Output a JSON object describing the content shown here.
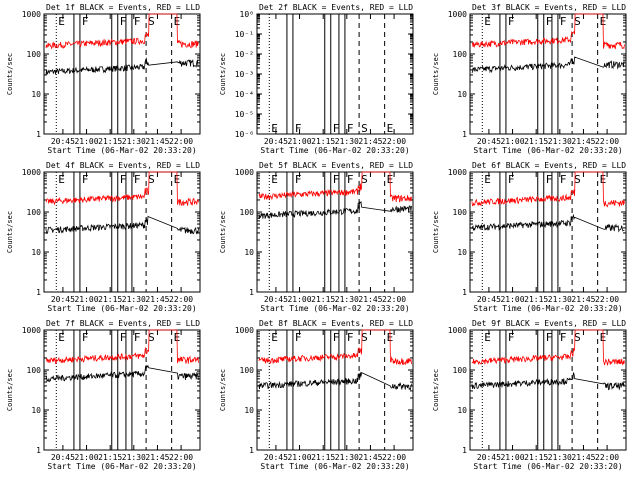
{
  "colors": {
    "events": "#000000",
    "lld": "#ff0000",
    "background": "#ffffff"
  },
  "shared": {
    "xlabel": "Start Time (06-Mar-02 20:33:20)",
    "ylabel": "Counts/sec",
    "xticks": [
      "20:45",
      "21:00",
      "21:15",
      "21:30",
      "21:45",
      "22:00"
    ]
  },
  "chart_data": [
    {
      "type": "line",
      "title": "Det 1f BLACK = Events, RED = LLD",
      "yscale": "log",
      "ylim": [
        1,
        1000
      ],
      "yticks": [
        "1",
        "10",
        "100",
        "1000"
      ],
      "series": [
        {
          "name": "Events",
          "color": "#000000",
          "level": 35,
          "end": 60
        },
        {
          "name": "LLD",
          "color": "#ff0000",
          "level": 160,
          "end": 180
        }
      ],
      "markers": [
        {
          "label": "E",
          "x": 20.68
        },
        {
          "label": "F",
          "x": 20.93
        },
        {
          "label": "F",
          "x": 21.33
        },
        {
          "label": "F",
          "x": 21.48
        },
        {
          "label": "S",
          "x": 21.63
        },
        {
          "label": "E",
          "x": 21.9
        }
      ]
    },
    {
      "type": "line",
      "title": "Det 2f BLACK = Events, RED = LLD",
      "yscale": "log",
      "ylim": [
        1e-06,
        1
      ],
      "yticks": [
        "10⁻⁶",
        "10⁻⁵",
        "10⁻⁴",
        "10⁻³",
        "10⁻²",
        "10⁻¹",
        "10⁰"
      ],
      "series": [],
      "markers": [
        {
          "label": "E",
          "x": 20.68
        },
        {
          "label": "F",
          "x": 20.93
        },
        {
          "label": "F",
          "x": 21.33
        },
        {
          "label": "F",
          "x": 21.48
        },
        {
          "label": "S",
          "x": 21.63
        },
        {
          "label": "E",
          "x": 21.9
        }
      ]
    },
    {
      "type": "line",
      "title": "Det 3f BLACK = Events, RED = LLD",
      "yscale": "log",
      "ylim": [
        1,
        1000
      ],
      "yticks": [
        "1",
        "10",
        "100",
        "1000"
      ],
      "series": [
        {
          "name": "Events",
          "color": "#000000",
          "level": 40,
          "end": 55
        },
        {
          "name": "LLD",
          "color": "#ff0000",
          "level": 170,
          "end": 170
        }
      ],
      "markers": [
        {
          "label": "E",
          "x": 20.68
        },
        {
          "label": "F",
          "x": 20.93
        },
        {
          "label": "F",
          "x": 21.33
        },
        {
          "label": "F",
          "x": 21.48
        },
        {
          "label": "S",
          "x": 21.63
        },
        {
          "label": "E",
          "x": 21.9
        }
      ]
    },
    {
      "type": "line",
      "title": "Det 4f BLACK = Events, RED = LLD",
      "yscale": "log",
      "ylim": [
        1,
        1000
      ],
      "yticks": [
        "1",
        "10",
        "100",
        "1000"
      ],
      "series": [
        {
          "name": "Events",
          "color": "#000000",
          "level": 35,
          "end": 35
        },
        {
          "name": "LLD",
          "color": "#ff0000",
          "level": 180,
          "end": 180
        }
      ],
      "markers": [
        {
          "label": "E",
          "x": 20.68
        },
        {
          "label": "F",
          "x": 20.93
        },
        {
          "label": "F",
          "x": 21.33
        },
        {
          "label": "F",
          "x": 21.48
        },
        {
          "label": "S",
          "x": 21.63
        },
        {
          "label": "E",
          "x": 21.9
        }
      ]
    },
    {
      "type": "line",
      "title": "Det 5f BLACK = Events, RED = LLD",
      "yscale": "log",
      "ylim": [
        1,
        1000
      ],
      "yticks": [
        "1",
        "10",
        "100",
        "1000"
      ],
      "series": [
        {
          "name": "Events",
          "color": "#000000",
          "level": 80,
          "end": 120
        },
        {
          "name": "LLD",
          "color": "#ff0000",
          "level": 240,
          "end": 220
        }
      ],
      "markers": [
        {
          "label": "E",
          "x": 20.68
        },
        {
          "label": "F",
          "x": 20.93
        },
        {
          "label": "F",
          "x": 21.33
        },
        {
          "label": "F",
          "x": 21.48
        },
        {
          "label": "S",
          "x": 21.63
        },
        {
          "label": "E",
          "x": 21.9
        }
      ]
    },
    {
      "type": "line",
      "title": "Det 6f BLACK = Events, RED = LLD",
      "yscale": "log",
      "ylim": [
        1,
        1000
      ],
      "yticks": [
        "1",
        "10",
        "100",
        "1000"
      ],
      "series": [
        {
          "name": "Events",
          "color": "#000000",
          "level": 40,
          "end": 40
        },
        {
          "name": "LLD",
          "color": "#ff0000",
          "level": 170,
          "end": 170
        }
      ],
      "markers": [
        {
          "label": "E",
          "x": 20.68
        },
        {
          "label": "F",
          "x": 20.93
        },
        {
          "label": "F",
          "x": 21.33
        },
        {
          "label": "F",
          "x": 21.48
        },
        {
          "label": "S",
          "x": 21.63
        },
        {
          "label": "E",
          "x": 21.9
        }
      ]
    },
    {
      "type": "line",
      "title": "Det 7f BLACK = Events, RED = LLD",
      "yscale": "log",
      "ylim": [
        1,
        1000
      ],
      "yticks": [
        "1",
        "10",
        "100",
        "1000"
      ],
      "series": [
        {
          "name": "Events",
          "color": "#000000",
          "level": 60,
          "end": 70
        },
        {
          "name": "LLD",
          "color": "#ff0000",
          "level": 170,
          "end": 180
        }
      ],
      "markers": [
        {
          "label": "E",
          "x": 20.68
        },
        {
          "label": "F",
          "x": 20.93
        },
        {
          "label": "F",
          "x": 21.33
        },
        {
          "label": "F",
          "x": 21.48
        },
        {
          "label": "S",
          "x": 21.63
        },
        {
          "label": "E",
          "x": 21.9
        }
      ]
    },
    {
      "type": "line",
      "title": "Det 8f BLACK = Events, RED = LLD",
      "yscale": "log",
      "ylim": [
        1,
        1000
      ],
      "yticks": [
        "1",
        "10",
        "100",
        "1000"
      ],
      "series": [
        {
          "name": "Events",
          "color": "#000000",
          "level": 40,
          "end": 40
        },
        {
          "name": "LLD",
          "color": "#ff0000",
          "level": 170,
          "end": 170
        }
      ],
      "markers": [
        {
          "label": "E",
          "x": 20.68
        },
        {
          "label": "F",
          "x": 20.93
        },
        {
          "label": "F",
          "x": 21.33
        },
        {
          "label": "F",
          "x": 21.48
        },
        {
          "label": "S",
          "x": 21.63
        },
        {
          "label": "E",
          "x": 21.9
        }
      ]
    },
    {
      "type": "line",
      "title": "Det 9f BLACK = Events, RED = LLD",
      "yscale": "log",
      "ylim": [
        1,
        1000
      ],
      "yticks": [
        "1",
        "10",
        "100",
        "1000"
      ],
      "series": [
        {
          "name": "Events",
          "color": "#000000",
          "level": 40,
          "end": 40
        },
        {
          "name": "LLD",
          "color": "#ff0000",
          "level": 160,
          "end": 160
        }
      ],
      "markers": [
        {
          "label": "E",
          "x": 20.68
        },
        {
          "label": "F",
          "x": 20.93
        },
        {
          "label": "F",
          "x": 21.33
        },
        {
          "label": "F",
          "x": 21.48
        },
        {
          "label": "S",
          "x": 21.63
        },
        {
          "label": "E",
          "x": 21.9
        }
      ]
    }
  ]
}
